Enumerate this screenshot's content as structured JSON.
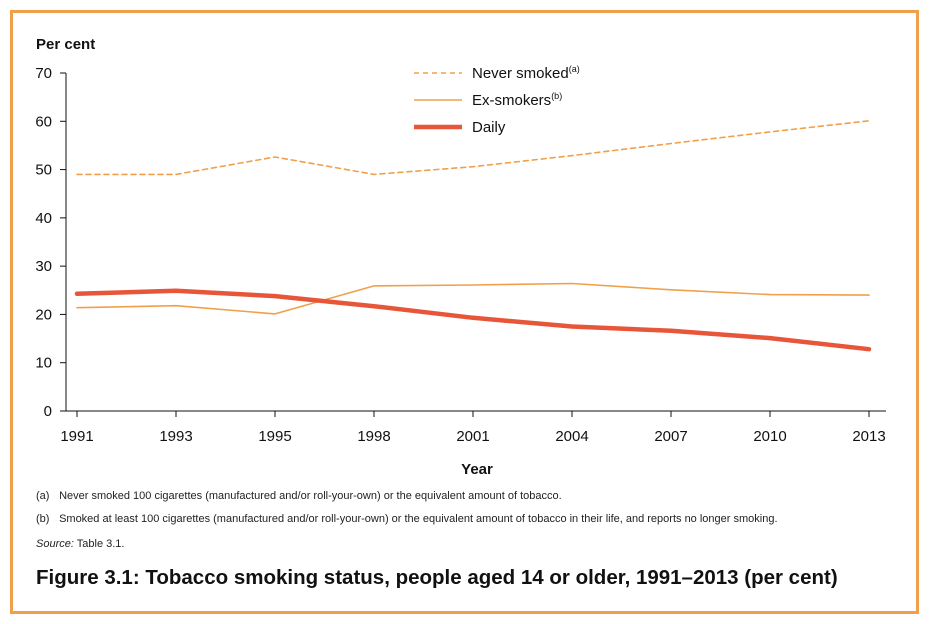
{
  "chart_data": {
    "type": "line",
    "ylabel": "Per cent",
    "xlabel": "Year",
    "categories": [
      "1991",
      "1993",
      "1995",
      "1998",
      "2001",
      "2004",
      "2007",
      "2010",
      "2013"
    ],
    "ylim": [
      0,
      70
    ],
    "yticks": [
      "0",
      "10",
      "20",
      "30",
      "40",
      "50",
      "60",
      "70"
    ],
    "grid": false,
    "legend_position": "top-center",
    "series": [
      {
        "name": "Never smoked",
        "sup": "(a)",
        "style": "dashed",
        "color": "#f0a04b",
        "values": [
          49.0,
          49.0,
          52.6,
          49.0,
          50.6,
          52.9,
          55.4,
          57.8,
          60.1
        ]
      },
      {
        "name": "Ex-smokers",
        "sup": "(b)",
        "style": "solid-thin",
        "color": "#f0a04b",
        "values": [
          21.4,
          21.8,
          20.1,
          25.9,
          26.1,
          26.4,
          25.1,
          24.1,
          24.0
        ]
      },
      {
        "name": "Daily",
        "sup": "",
        "style": "solid-thick",
        "color": "#e8563a",
        "values": [
          24.3,
          24.9,
          23.8,
          21.7,
          19.3,
          17.5,
          16.6,
          15.1,
          12.8
        ]
      }
    ]
  },
  "notes": {
    "a_label": "(a)",
    "a_text": "Never smoked 100 cigarettes (manufactured and/or roll-your-own) or the equivalent amount of tobacco.",
    "b_label": "(b)",
    "b_text": "Smoked at least 100 cigarettes (manufactured and/or roll-your-own) or the equivalent amount of tobacco in their life, and reports no longer smoking.",
    "source_label": "Source:",
    "source_text": " Table 3.1."
  },
  "caption": "Figure 3.1: Tobacco smoking status, people aged 14 or older, 1991–2013 (per cent)",
  "colors": {
    "frame": "#f0a04b",
    "light_orange": "#f0a04b",
    "dark_orange": "#e8563a"
  }
}
